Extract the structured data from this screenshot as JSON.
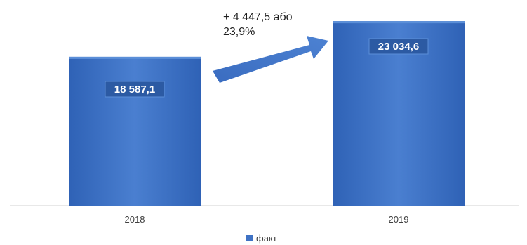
{
  "chart_data": {
    "type": "bar",
    "categories": [
      "2018",
      "2019"
    ],
    "series": [
      {
        "name": "факт",
        "values": [
          18587.1,
          23034.6
        ]
      }
    ],
    "data_labels": [
      "18 587,1",
      "23 034,6"
    ],
    "annotation": {
      "line1": "+ 4 447,5 або",
      "line2": "23,9%"
    },
    "ylim": [
      0,
      24800
    ],
    "grid": false,
    "legend_position": "bottom",
    "bar_color": "#3f72c4",
    "bar_color_light": "#5b8fd8",
    "bar_color_dark": "#2c5aa3",
    "arrow_color": "#3f72c4"
  }
}
